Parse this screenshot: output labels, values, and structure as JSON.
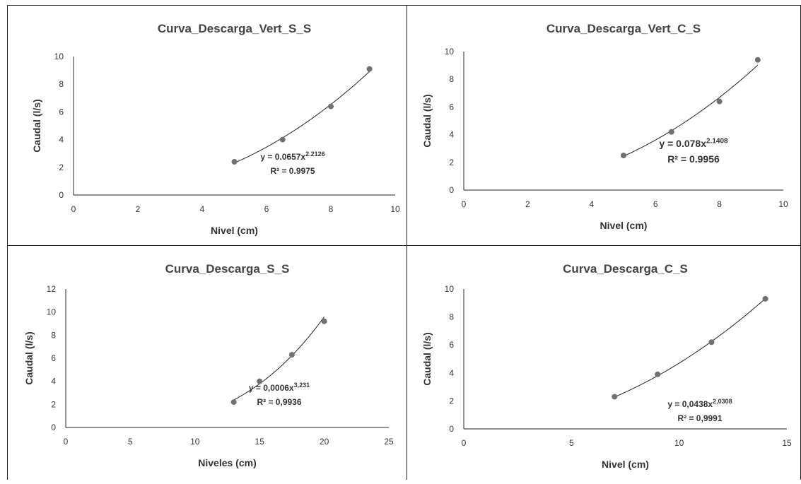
{
  "chart_data": [
    {
      "type": "scatter",
      "title": "Curva_Descarga_Vert_S_S",
      "xlabel": "Nivel (cm)",
      "ylabel": "Caudal (l/s)",
      "xlim": [
        0,
        10
      ],
      "ylim": [
        0,
        10
      ],
      "x_ticks": [
        "0",
        "2",
        "4",
        "6",
        "8",
        "10"
      ],
      "y_ticks": [
        "0",
        "2",
        "4",
        "6",
        "8",
        "10"
      ],
      "series": [
        {
          "x": [
            5.0,
            6.5,
            8.0,
            9.2
          ],
          "y": [
            2.4,
            4.0,
            6.4,
            9.1
          ]
        }
      ],
      "trendline": {
        "type": "power",
        "a": 0.0657,
        "b": 2.2126
      },
      "equation": {
        "prefix": "y = 0.0657x",
        "exponent": "2.2126",
        "r2": "R² = 0.9975"
      }
    },
    {
      "type": "scatter",
      "title": "Curva_Descarga_Vert_C_S",
      "xlabel": "Nivel (cm)",
      "ylabel": "Caudal (l/s)",
      "xlim": [
        0,
        10
      ],
      "ylim": [
        0,
        10
      ],
      "x_ticks": [
        "0",
        "2",
        "4",
        "6",
        "8",
        "10"
      ],
      "y_ticks": [
        "0",
        "2",
        "4",
        "6",
        "8",
        "10"
      ],
      "series": [
        {
          "x": [
            5.0,
            6.5,
            8.0,
            9.2
          ],
          "y": [
            2.5,
            4.2,
            6.4,
            9.4
          ]
        }
      ],
      "trendline": {
        "type": "power",
        "a": 0.078,
        "b": 2.1408
      },
      "equation": {
        "prefix": "y = 0.078x",
        "exponent": "2.1408",
        "r2": "R² = 0.9956"
      }
    },
    {
      "type": "scatter",
      "title": "Curva_Descarga_S_S",
      "xlabel": "Niveles (cm)",
      "ylabel": "Caudal (l/s)",
      "xlim": [
        0,
        25
      ],
      "ylim": [
        0,
        12
      ],
      "x_ticks": [
        "0",
        "5",
        "10",
        "15",
        "20",
        "25"
      ],
      "y_ticks": [
        "0",
        "2",
        "4",
        "6",
        "8",
        "10",
        "12"
      ],
      "series": [
        {
          "x": [
            13,
            15,
            17.5,
            20
          ],
          "y": [
            2.2,
            4.0,
            6.3,
            9.2
          ]
        }
      ],
      "trendline": {
        "type": "power",
        "a": 0.0006,
        "b": 3.231
      },
      "equation": {
        "prefix": "y = 0,0006x",
        "exponent": "3,231",
        "r2": "R² = 0,9936"
      }
    },
    {
      "type": "scatter",
      "title": "Curva_Descarga_C_S",
      "xlabel": "Nivel (cm)",
      "ylabel": "Caudal (l/s)",
      "xlim": [
        0,
        15
      ],
      "ylim": [
        0,
        10
      ],
      "x_ticks": [
        "0",
        "5",
        "10",
        "15"
      ],
      "y_ticks": [
        "0",
        "2",
        "4",
        "6",
        "8",
        "10"
      ],
      "series": [
        {
          "x": [
            7,
            9,
            11.5,
            14
          ],
          "y": [
            2.3,
            3.9,
            6.2,
            9.3
          ]
        }
      ],
      "trendline": {
        "type": "power",
        "a": 0.0438,
        "b": 2.0308
      },
      "equation": {
        "prefix": "y = 0,0438x",
        "exponent": "2,0308",
        "r2": "R² = 0,9991"
      }
    }
  ]
}
